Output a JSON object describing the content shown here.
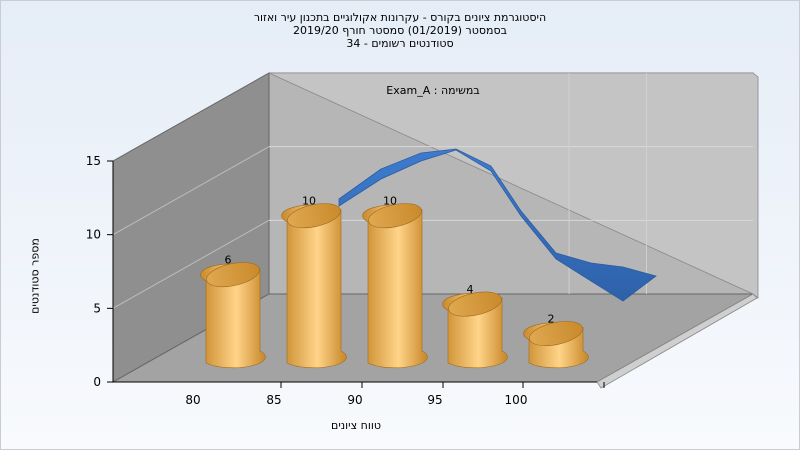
{
  "chart_data": {
    "type": "bar",
    "title": [
      "היסטוגרמת ציונים בקורס - עקרונות אקולוגיים בתכנון עיר ואזור",
      "בסמסטר  (01/2019)  סמסטר חורף 2019/20",
      "סטודנטים רשומים - 34"
    ],
    "annotation": "במשימה : Exam_A",
    "xlabel": "טווח ציונים",
    "ylabel": "מספר סטודנטים",
    "x_ticks": [
      "80",
      "85",
      "90",
      "95",
      "100"
    ],
    "y_ticks": [
      "0",
      "5",
      "10",
      "15"
    ],
    "ylim": [
      0,
      15
    ],
    "categories": [
      "80",
      "85",
      "90",
      "95",
      "100"
    ],
    "values": [
      6,
      10,
      10,
      4,
      2
    ],
    "value_labels": [
      "6",
      "10",
      "10",
      "4",
      "2"
    ],
    "colors": {
      "bar": "#e8a848",
      "curve": "#2e69bf"
    }
  }
}
